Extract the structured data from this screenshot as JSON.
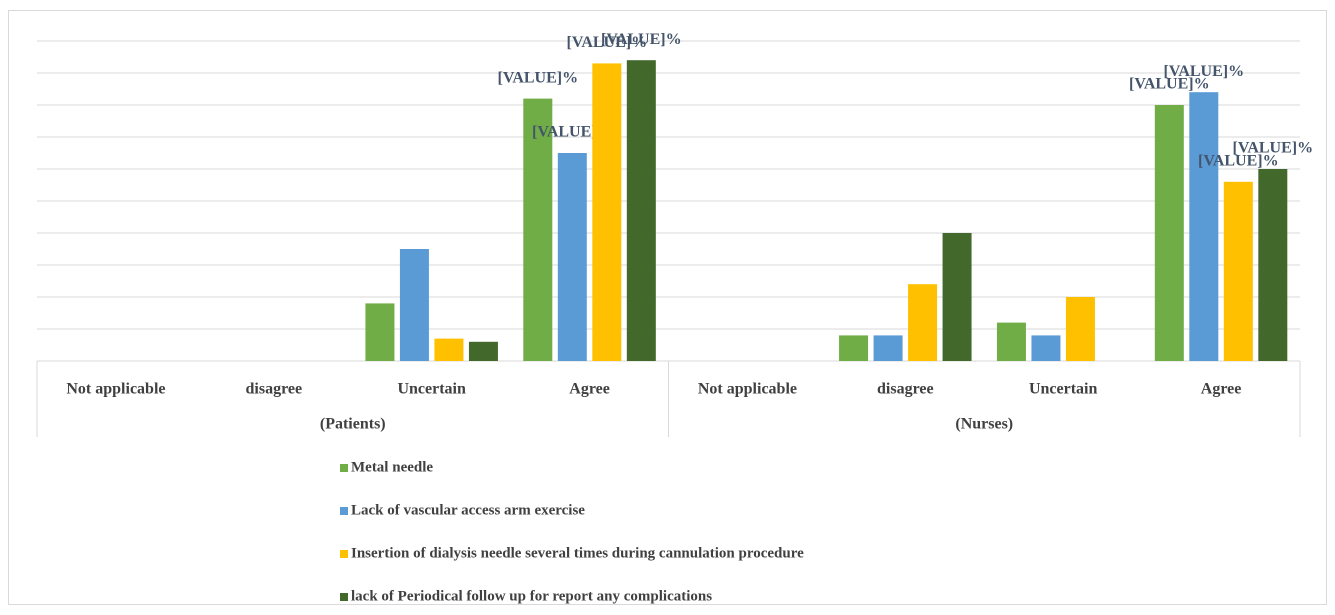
{
  "chart_data": {
    "type": "bar",
    "categories": [
      "Not applicable",
      "disagree",
      "Uncertain",
      "Agree",
      "Not applicable",
      "disagree",
      "Uncertain",
      "Agree"
    ],
    "groups": [
      "(Patients)",
      "(Nurses)"
    ],
    "ylim": [
      0,
      100
    ],
    "yticks": [
      0,
      10,
      20,
      30,
      40,
      50,
      60,
      70,
      80,
      90,
      100
    ],
    "grid": true,
    "series": [
      {
        "name": "Metal needle",
        "color": "#70ad47",
        "values": [
          0,
          0,
          18,
          82,
          0,
          8,
          12,
          80
        ],
        "value_labels": [
          null,
          null,
          null,
          "[VALUE]%",
          null,
          null,
          null,
          "[VALUE]%"
        ]
      },
      {
        "name": "Lack of vascular access arm exercise",
        "color": "#5b9bd5",
        "values": [
          0,
          0,
          35,
          65,
          0,
          8,
          8,
          84
        ],
        "value_labels": [
          null,
          null,
          null,
          "[VALUE]%",
          null,
          null,
          null,
          "[VALUE]%"
        ]
      },
      {
        "name": "Insertion of dialysis needle several times during cannulation procedure",
        "color": "#ffc000",
        "values": [
          0,
          0,
          7,
          93,
          0,
          24,
          20,
          56
        ],
        "value_labels": [
          null,
          null,
          null,
          "[VALUE]%",
          null,
          null,
          null,
          "[VALUE]%"
        ]
      },
      {
        "name": "lack of  Periodical follow up for report any complications",
        "color": "#43682b",
        "values": [
          0,
          0,
          6,
          94,
          0,
          40,
          0,
          60
        ],
        "value_labels": [
          null,
          null,
          null,
          "[VALUE]%",
          null,
          null,
          null,
          "[VALUE]%"
        ]
      }
    ]
  }
}
